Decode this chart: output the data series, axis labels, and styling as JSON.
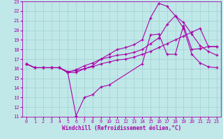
{
  "xlabel": "Windchill (Refroidissement éolien,°C)",
  "xlim": [
    -0.5,
    23.5
  ],
  "ylim": [
    11,
    23
  ],
  "xticks": [
    0,
    1,
    2,
    3,
    4,
    5,
    6,
    7,
    8,
    9,
    10,
    11,
    12,
    13,
    14,
    15,
    16,
    17,
    18,
    19,
    20,
    21,
    22,
    23
  ],
  "yticks": [
    11,
    12,
    13,
    14,
    15,
    16,
    17,
    18,
    19,
    20,
    21,
    22,
    23
  ],
  "bg_color": "#c0e8e8",
  "grid_color": "#a0d0d0",
  "line_color": "#aa00aa",
  "lines": [
    {
      "x": [
        0,
        1,
        2,
        3,
        4,
        5,
        6,
        7,
        8,
        9,
        10,
        14,
        15,
        16,
        17,
        18,
        19,
        20,
        21,
        22,
        23
      ],
      "y": [
        16.5,
        16.1,
        16.1,
        16.1,
        16.1,
        15.6,
        11.1,
        13.0,
        13.3,
        14.1,
        14.3,
        16.5,
        19.5,
        19.6,
        17.5,
        17.5,
        20.5,
        18.0,
        18.1,
        18.3,
        18.3
      ]
    },
    {
      "x": [
        0,
        1,
        2,
        3,
        4,
        5,
        6,
        7,
        8,
        9,
        10,
        11,
        12,
        13,
        14,
        15,
        16,
        17,
        18,
        19,
        20,
        21,
        22,
        23
      ],
      "y": [
        16.5,
        16.1,
        16.1,
        16.1,
        16.1,
        15.6,
        15.6,
        16.0,
        16.3,
        17.0,
        17.5,
        18.0,
        18.2,
        18.5,
        19.0,
        21.3,
        22.8,
        22.5,
        21.5,
        20.2,
        17.5,
        16.6,
        16.2,
        16.1
      ]
    },
    {
      "x": [
        0,
        1,
        2,
        3,
        4,
        5,
        6,
        7,
        8,
        9,
        10,
        11,
        12,
        13,
        14,
        15,
        16,
        17,
        18,
        19,
        20,
        21,
        22,
        23
      ],
      "y": [
        16.5,
        16.1,
        16.1,
        16.1,
        16.1,
        15.6,
        15.9,
        16.3,
        16.6,
        17.0,
        17.2,
        17.4,
        17.5,
        17.7,
        18.0,
        18.6,
        19.2,
        20.6,
        21.5,
        20.8,
        19.6,
        18.4,
        17.8,
        17.4
      ]
    },
    {
      "x": [
        0,
        1,
        2,
        3,
        4,
        5,
        6,
        7,
        8,
        9,
        10,
        11,
        12,
        13,
        14,
        15,
        16,
        17,
        18,
        19,
        20,
        21,
        22,
        23
      ],
      "y": [
        16.5,
        16.1,
        16.1,
        16.1,
        16.1,
        15.7,
        15.8,
        16.0,
        16.2,
        16.5,
        16.7,
        16.9,
        17.0,
        17.2,
        17.5,
        17.8,
        18.2,
        18.6,
        19.0,
        19.4,
        19.8,
        20.2,
        18.3,
        18.3
      ]
    }
  ]
}
